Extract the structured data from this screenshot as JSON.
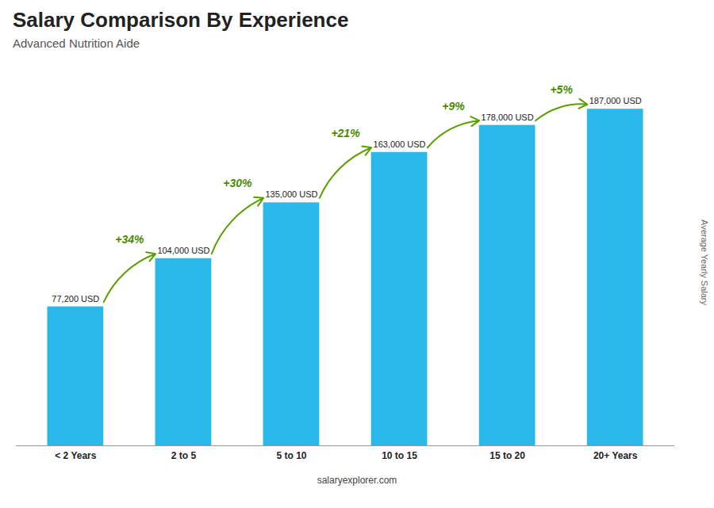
{
  "chart_data": {
    "type": "bar",
    "title": "Salary Comparison By Experience",
    "subtitle": "Advanced Nutrition Aide",
    "ylabel": "Average Yearly Salary",
    "caption": "salaryexplorer.com",
    "categories": [
      "< 2 Years",
      "2 to 5",
      "5 to 10",
      "10 to 15",
      "15 to 20",
      "20+ Years"
    ],
    "values": [
      77200,
      104000,
      135000,
      163000,
      178000,
      187000
    ],
    "value_labels": [
      "77,200 USD",
      "104,000 USD",
      "135,000 USD",
      "163,000 USD",
      "178,000 USD",
      "187,000 USD"
    ],
    "data_labels": true,
    "annotations": [
      "+34%",
      "+30%",
      "+21%",
      "+9%",
      "+5%"
    ],
    "color": "#29b8e8",
    "ylim": [
      0,
      196350
    ],
    "tick_labels": "x"
  }
}
